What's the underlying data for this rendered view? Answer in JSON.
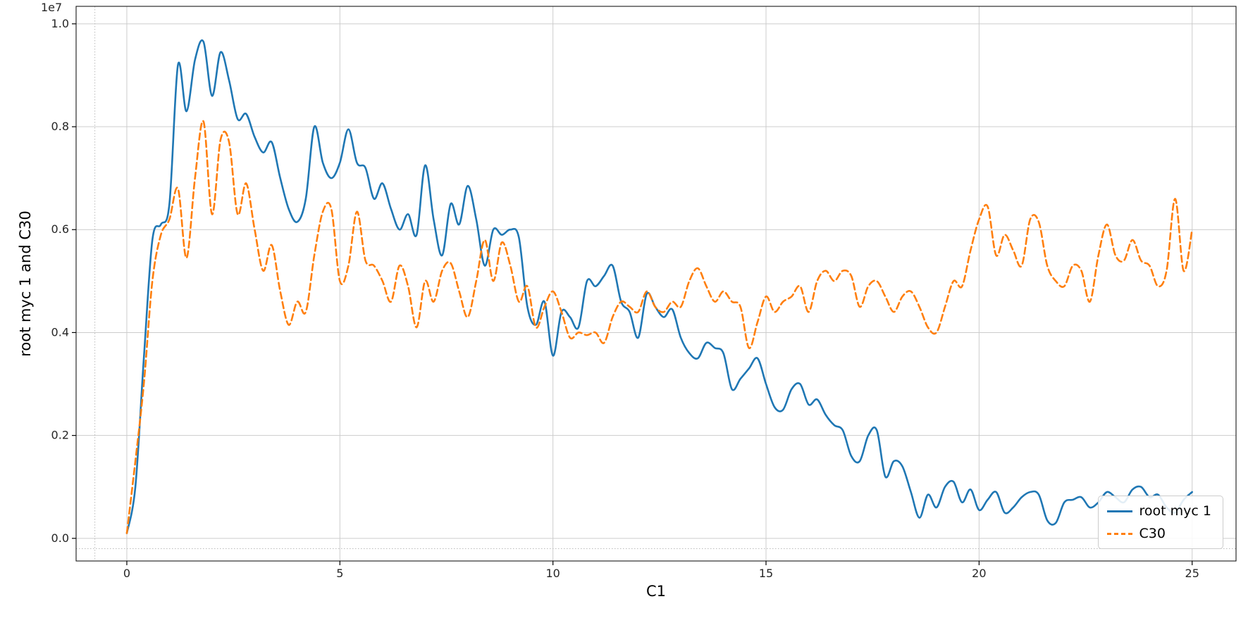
{
  "figure": {
    "background": "#ffffff"
  },
  "chart_data": {
    "type": "line",
    "title": "",
    "xlabel": "C1",
    "ylabel": "root myc 1 and C30",
    "y_offset_label": "1e7",
    "value_unit": "1e7",
    "x": {
      "start": 0,
      "step": 0.2,
      "count": 126
    },
    "series": [
      {
        "name": "root myc 1",
        "color": "#1f77b4",
        "style": "solid",
        "values": [
          0.01,
          0.1,
          0.35,
          0.58,
          0.61,
          0.65,
          0.92,
          0.83,
          0.93,
          0.965,
          0.86,
          0.945,
          0.89,
          0.815,
          0.825,
          0.78,
          0.75,
          0.77,
          0.7,
          0.64,
          0.615,
          0.66,
          0.8,
          0.73,
          0.7,
          0.73,
          0.795,
          0.73,
          0.72,
          0.66,
          0.69,
          0.64,
          0.6,
          0.63,
          0.59,
          0.725,
          0.62,
          0.55,
          0.65,
          0.61,
          0.685,
          0.62,
          0.53,
          0.6,
          0.59,
          0.6,
          0.585,
          0.45,
          0.415,
          0.46,
          0.355,
          0.44,
          0.43,
          0.41,
          0.5,
          0.49,
          0.51,
          0.53,
          0.46,
          0.44,
          0.39,
          0.475,
          0.45,
          0.43,
          0.445,
          0.39,
          0.36,
          0.35,
          0.38,
          0.37,
          0.36,
          0.29,
          0.31,
          0.33,
          0.35,
          0.3,
          0.255,
          0.25,
          0.29,
          0.3,
          0.26,
          0.27,
          0.24,
          0.22,
          0.21,
          0.16,
          0.15,
          0.2,
          0.21,
          0.12,
          0.15,
          0.14,
          0.09,
          0.04,
          0.085,
          0.06,
          0.1,
          0.11,
          0.07,
          0.095,
          0.055,
          0.075,
          0.09,
          0.05,
          0.06,
          0.08,
          0.09,
          0.085,
          0.035,
          0.03,
          0.07,
          0.075,
          0.08,
          0.06,
          0.07,
          0.09,
          0.08,
          0.07,
          0.095,
          0.1,
          0.08,
          0.085,
          0.06,
          0.05,
          0.075,
          0.09
        ]
      },
      {
        "name": "C30",
        "color": "#ff7f0e",
        "style": "dashed",
        "values": [
          0.01,
          0.15,
          0.3,
          0.5,
          0.59,
          0.62,
          0.68,
          0.545,
          0.7,
          0.81,
          0.63,
          0.775,
          0.77,
          0.63,
          0.69,
          0.6,
          0.52,
          0.57,
          0.48,
          0.415,
          0.46,
          0.44,
          0.55,
          0.635,
          0.64,
          0.5,
          0.53,
          0.635,
          0.54,
          0.53,
          0.5,
          0.46,
          0.53,
          0.49,
          0.41,
          0.5,
          0.46,
          0.52,
          0.535,
          0.48,
          0.43,
          0.5,
          0.58,
          0.5,
          0.575,
          0.53,
          0.46,
          0.49,
          0.41,
          0.45,
          0.48,
          0.44,
          0.39,
          0.4,
          0.395,
          0.4,
          0.38,
          0.43,
          0.46,
          0.45,
          0.44,
          0.48,
          0.45,
          0.44,
          0.46,
          0.45,
          0.5,
          0.525,
          0.49,
          0.46,
          0.48,
          0.46,
          0.45,
          0.37,
          0.42,
          0.47,
          0.44,
          0.46,
          0.47,
          0.49,
          0.44,
          0.5,
          0.52,
          0.5,
          0.52,
          0.51,
          0.45,
          0.49,
          0.5,
          0.47,
          0.44,
          0.47,
          0.48,
          0.45,
          0.41,
          0.4,
          0.45,
          0.5,
          0.49,
          0.56,
          0.62,
          0.645,
          0.55,
          0.59,
          0.56,
          0.53,
          0.62,
          0.615,
          0.53,
          0.5,
          0.49,
          0.53,
          0.52,
          0.46,
          0.55,
          0.61,
          0.55,
          0.54,
          0.58,
          0.54,
          0.53,
          0.49,
          0.52,
          0.66,
          0.52,
          0.6
        ]
      }
    ],
    "xlim": [
      -1.19,
      26.03
    ],
    "ylim": [
      -0.044,
      1.034
    ],
    "xticks": {
      "values": [
        0,
        5,
        10,
        15,
        20,
        25
      ],
      "labels": [
        "0",
        "5",
        "10",
        "15",
        "20",
        "25"
      ]
    },
    "yticks": {
      "values": [
        0.0,
        0.2,
        0.4,
        0.6,
        0.8,
        1.0
      ],
      "labels": [
        "0.0",
        "0.2",
        "0.4",
        "0.6",
        "0.8",
        "1.0"
      ]
    },
    "grid": true,
    "grid_color": "#cccccc",
    "spine_color": "#000000",
    "tick_label_color": "#262626",
    "legend": {
      "position": "lower right",
      "entries": [
        "root myc 1",
        "C30"
      ]
    },
    "aux_lines": {
      "vertical_x": -0.75,
      "horizontal_y": -0.02,
      "style": "dotted",
      "color": "#bbbbbb"
    }
  }
}
